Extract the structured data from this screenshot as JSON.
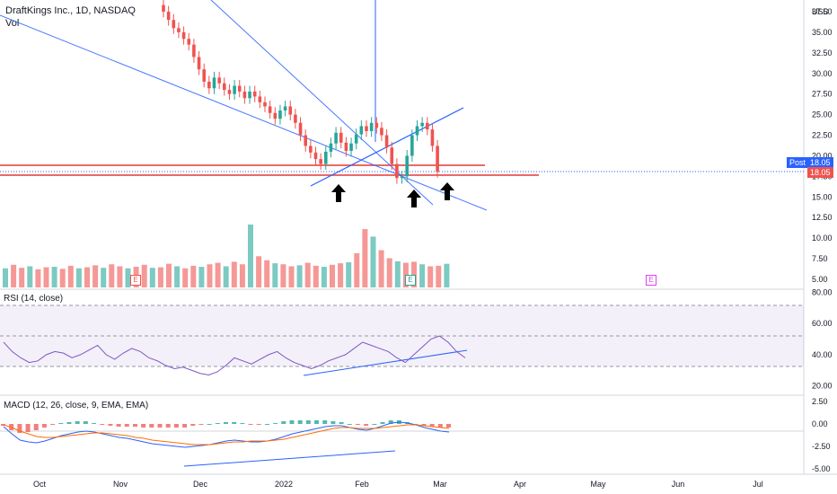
{
  "header": {
    "title": "DraftKings Inc., 1D, NASDAQ",
    "vol_label": "Vol",
    "currency": "USD"
  },
  "badges": {
    "post_label": "Post",
    "post_price": "18.05",
    "last_price": "18.05"
  },
  "earnings_marker": "E",
  "colors": {
    "up": "#26a69a",
    "down": "#ef5350",
    "trend": "#2962ff",
    "support": "#e53935",
    "rsi_line": "#7e57c2",
    "macd_line": "#2962ff",
    "signal_line": "#ff6d00"
  },
  "chart_data": [
    {
      "type": "candlestick",
      "title": "DraftKings Inc., 1D, NASDAQ",
      "y_ticks": [
        "37.50",
        "35.00",
        "32.50",
        "30.00",
        "27.50",
        "25.00",
        "22.50",
        "20.00",
        "17.50",
        "15.00",
        "12.50",
        "10.00",
        "7.50",
        "5.00"
      ],
      "x_ticks": [
        "Oct",
        "Nov",
        "Dec",
        "2022",
        "Feb",
        "Mar",
        "Apr",
        "May",
        "Jun",
        "Jul"
      ],
      "ylim": [
        5,
        37.5
      ],
      "last_price": 18.05,
      "support_levels": [
        19.0,
        17.6
      ],
      "annotations": [
        "arrow-up",
        "arrow-up",
        "arrow-up"
      ],
      "close_series": [
        37.5,
        36.5,
        35.5,
        35,
        34.2,
        33.5,
        32,
        30.5,
        29,
        28.2,
        29.5,
        28.8,
        28,
        27.5,
        28.5,
        27.8,
        27,
        27.8,
        27.2,
        26.5,
        26,
        25.2,
        24.5,
        25.5,
        26,
        25,
        24,
        22.5,
        21.2,
        20.4,
        19.6,
        19,
        20.5,
        21.5,
        22.8,
        21.6,
        20.6,
        21.5,
        22.6,
        23.6,
        23,
        24,
        23.4,
        22.5,
        21,
        19,
        17.3,
        17.5,
        20,
        22.5,
        23.6,
        24,
        23.2,
        21.2,
        18.05
      ]
    },
    {
      "type": "bar",
      "title": "Vol",
      "values": [
        3.8,
        4.5,
        3.9,
        4.2,
        3.6,
        4,
        4.1,
        3.7,
        4.3,
        3.8,
        4,
        4.4,
        3.9,
        4.6,
        4.2,
        3.8,
        4.1,
        4.5,
        3.9,
        4,
        4.7,
        4.2,
        3.8,
        4.3,
        4.1,
        4.6,
        4.9,
        4.2,
        5.1,
        4.6,
        12.5,
        6.2,
        5.4,
        4.8,
        4.6,
        4.2,
        4.4,
        4.9,
        4.3,
        4.1,
        4.5,
        4.8,
        5,
        6.8,
        11.6,
        10.1,
        7.4,
        5.8,
        5.2,
        4.9,
        5.1,
        4.6,
        4.2,
        4.3,
        4.7
      ]
    },
    {
      "type": "line",
      "title": "RSI (14, close)",
      "y_ticks": [
        "80.00",
        "60.00",
        "40.00",
        "20.00"
      ],
      "ylim": [
        14,
        82
      ],
      "values": [
        48,
        42,
        38,
        35,
        36,
        40,
        42,
        41,
        38,
        40,
        43,
        46,
        40,
        37,
        41,
        44,
        42,
        38,
        36,
        33,
        31,
        32,
        30,
        28,
        27,
        29,
        33,
        38,
        36,
        34,
        37,
        40,
        42,
        38,
        35,
        33,
        31,
        33,
        36,
        38,
        40,
        44,
        48,
        46,
        44,
        42,
        38,
        35,
        40,
        45,
        50,
        52,
        48,
        42,
        38
      ]
    },
    {
      "type": "line",
      "title": "MACD (12, 26, close, 9, EMA, EMA)",
      "y_ticks": [
        "2.50",
        "0.00",
        "-2.50",
        "-5.00"
      ],
      "ylim": [
        -5.6,
        3.2
      ],
      "series": [
        {
          "values": [
            -0.3,
            -1.1,
            -1.8,
            -2.0,
            -2.1,
            -1.9,
            -1.6,
            -1.3,
            -1.1,
            -0.9,
            -0.8,
            -0.9,
            -1.1,
            -1.3,
            -1.5,
            -1.6,
            -1.8,
            -2.0,
            -2.2,
            -2.3,
            -2.4,
            -2.5,
            -2.6,
            -2.5,
            -2.4,
            -2.3,
            -2.1,
            -1.9,
            -1.8,
            -1.9,
            -2.0,
            -2.0,
            -1.9,
            -1.7,
            -1.4,
            -1.1,
            -0.9,
            -0.7,
            -0.5,
            -0.3,
            -0.2,
            -0.2,
            -0.4,
            -0.6,
            -0.7,
            -0.5,
            -0.2,
            0.1,
            0.2,
            0.1,
            -0.1,
            -0.4,
            -0.6,
            -0.8,
            -0.9
          ]
        },
        {
          "values": [
            -0.1,
            -0.4,
            -0.8,
            -1.1,
            -1.4,
            -1.5,
            -1.5,
            -1.4,
            -1.3,
            -1.2,
            -1.1,
            -1.0,
            -1.0,
            -1.1,
            -1.2,
            -1.3,
            -1.5,
            -1.6,
            -1.8,
            -1.9,
            -2.0,
            -2.1,
            -2.2,
            -2.3,
            -2.3,
            -2.3,
            -2.2,
            -2.1,
            -2.0,
            -2.0,
            -1.9,
            -1.9,
            -1.9,
            -1.8,
            -1.7,
            -1.5,
            -1.3,
            -1.1,
            -0.9,
            -0.7,
            -0.5,
            -0.4,
            -0.4,
            -0.5,
            -0.5,
            -0.5,
            -0.4,
            -0.3,
            -0.2,
            -0.1,
            -0.1,
            -0.2,
            -0.3,
            -0.4,
            -0.5
          ]
        }
      ]
    }
  ]
}
